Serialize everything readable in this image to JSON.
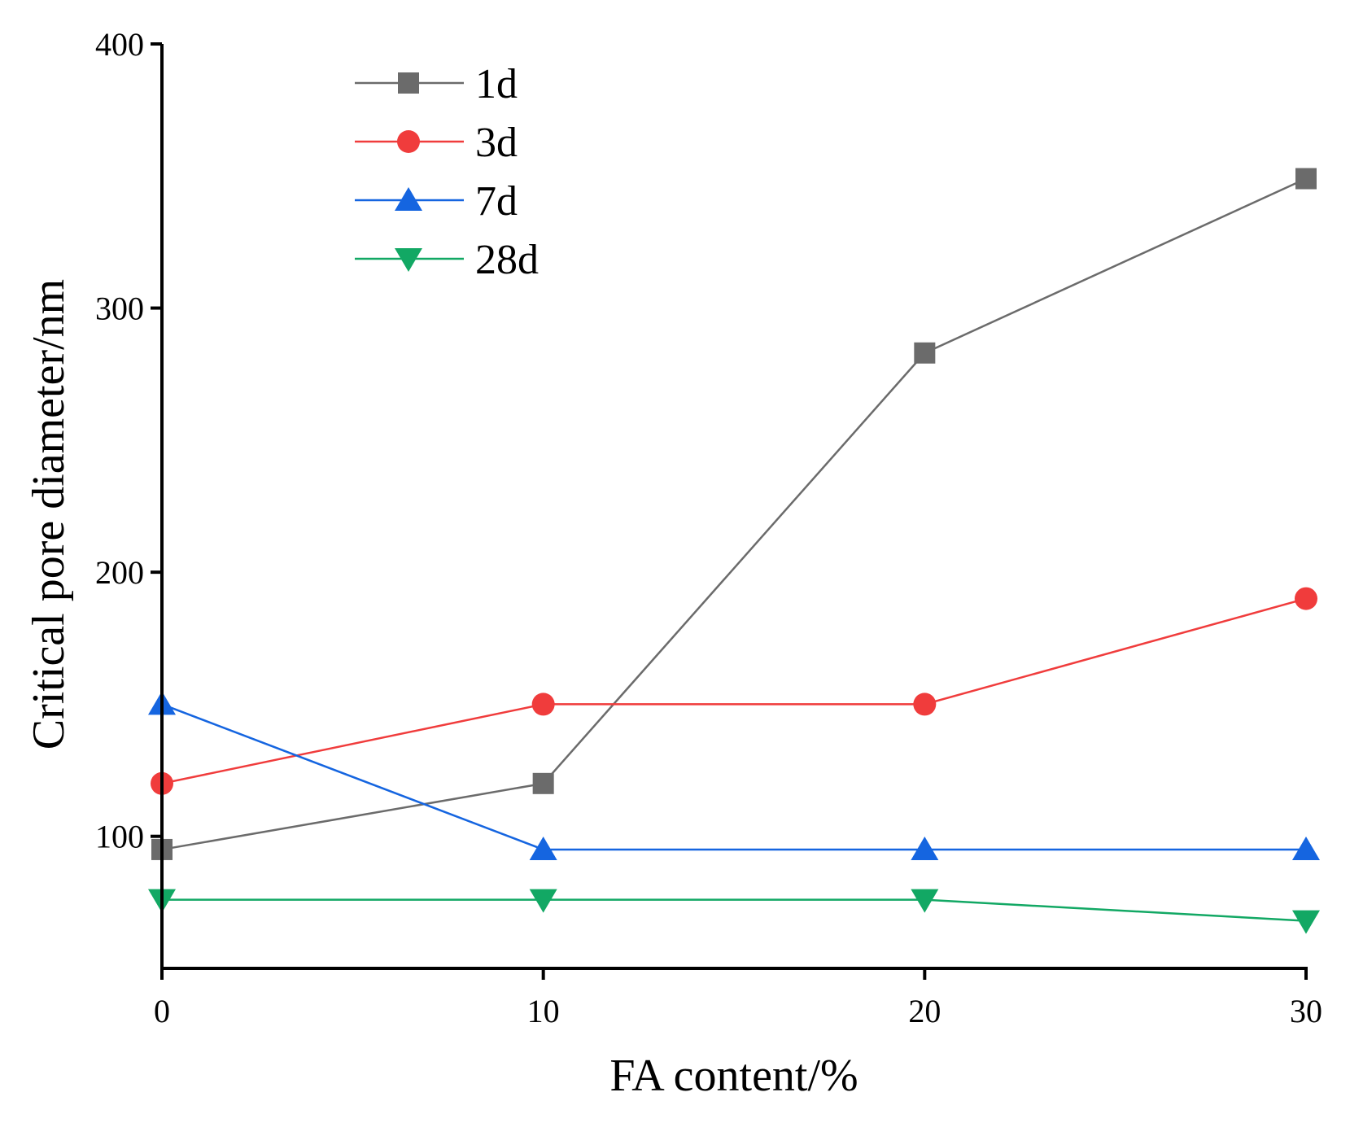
{
  "chart_data": {
    "type": "line",
    "title": "",
    "xlabel": "FA content/%",
    "ylabel": "Critical pore diameter/nm",
    "x": [
      0,
      10,
      20,
      30
    ],
    "xlim": [
      0,
      30
    ],
    "ylim": [
      50,
      400
    ],
    "xticks": [
      "0",
      "10",
      "20",
      "30"
    ],
    "yticks": [
      "100",
      "200",
      "300",
      "400"
    ],
    "grid": false,
    "legend_position": "top-left",
    "series": [
      {
        "name": "1d",
        "values": [
          95,
          120,
          283,
          349
        ],
        "color": "#6b6b6b",
        "marker": "square"
      },
      {
        "name": "3d",
        "values": [
          120,
          150,
          150,
          190
        ],
        "color": "#f03c3c",
        "marker": "circle"
      },
      {
        "name": "7d",
        "values": [
          150,
          95,
          95,
          95
        ],
        "color": "#1565e0",
        "marker": "triangle-up"
      },
      {
        "name": "28d",
        "values": [
          76,
          76,
          76,
          68
        ],
        "color": "#12a864",
        "marker": "triangle-down"
      }
    ]
  }
}
